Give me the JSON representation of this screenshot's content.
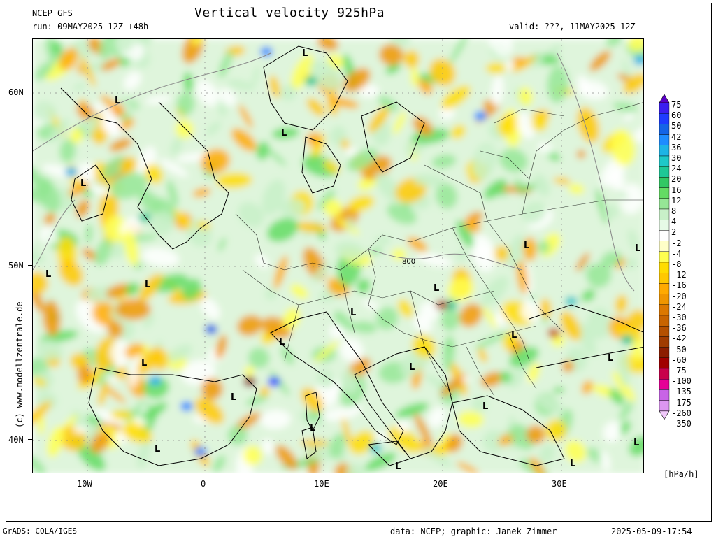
{
  "header": {
    "model": "NCEP GFS",
    "title": "Vertical velocity 925hPa",
    "run": "run: 09MAY2025 12Z +48h",
    "valid": "valid: ???, 11MAY2025 12Z"
  },
  "axes": {
    "lat_labels": [
      "60N",
      "50N",
      "40N"
    ],
    "lon_labels": [
      "10W",
      "0",
      "10E",
      "20E",
      "30E"
    ]
  },
  "map": {
    "low_marker": "L",
    "contour_label": "800",
    "lows_count_note": null
  },
  "legend": {
    "unit": "[hPa/h]",
    "levels": [
      "75",
      "60",
      "50",
      "42",
      "36",
      "30",
      "24",
      "20",
      "16",
      "12",
      "8",
      "4",
      "2",
      "-2",
      "-4",
      "-8",
      "-12",
      "-16",
      "-20",
      "-24",
      "-30",
      "-36",
      "-42",
      "-50",
      "-60",
      "-75",
      "-100",
      "-135",
      "-175",
      "-260",
      "-350"
    ],
    "colors": [
      "#5a00c8",
      "#3c1ef0",
      "#1e3cff",
      "#1464e6",
      "#1e8cff",
      "#1eb4e6",
      "#1ec8c8",
      "#1ec896",
      "#32c864",
      "#64dc64",
      "#96e696",
      "#c8f0c8",
      "#e6fae6",
      "#ffffff",
      "#ffffc8",
      "#ffff50",
      "#ffdc00",
      "#ffc800",
      "#ffaa00",
      "#f09600",
      "#dc7800",
      "#c86400",
      "#b45000",
      "#a03c00",
      "#8c1e00",
      "#a00000",
      "#c8004b",
      "#e60096",
      "#c864e6",
      "#dc96f0",
      "#f0c8fa"
    ]
  },
  "footer": {
    "left": "GrADS: COLA/IGES",
    "data": "data: NCEP; graphic: Janek Zimmer",
    "timestamp": "2025-05-09-17:54",
    "side_credit": "(c) www.modellzentrale.de"
  }
}
